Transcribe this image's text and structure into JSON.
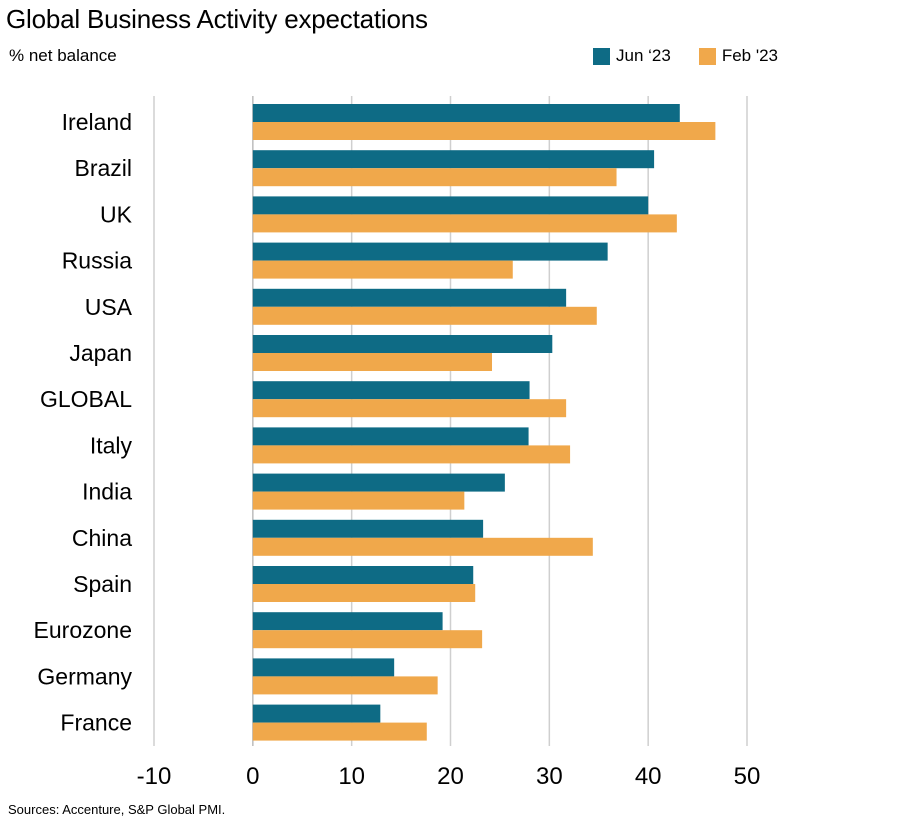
{
  "title": "Global Business Activity expectations",
  "subtitle": "% net balance",
  "source": "Sources: Accenture, S&P Global PMI.",
  "colors": {
    "jun": "#0e6b85",
    "feb": "#f0a84b",
    "grid": "#cfcfcf"
  },
  "chart_data": {
    "type": "bar",
    "orientation": "horizontal",
    "title": "Global Business Activity expectations",
    "subtitle": "% net balance",
    "categories": [
      "Ireland",
      "Brazil",
      "UK",
      "Russia",
      "USA",
      "Japan",
      "GLOBAL",
      "Italy",
      "India",
      "China",
      "Spain",
      "Eurozone",
      "Germany",
      "France"
    ],
    "series": [
      {
        "name": "Jun ‘23",
        "values": [
          43.2,
          40.6,
          40.0,
          35.9,
          31.7,
          30.3,
          28.0,
          27.9,
          25.5,
          23.3,
          22.3,
          19.2,
          14.3,
          12.9
        ]
      },
      {
        "name": "Feb '23",
        "values": [
          46.8,
          36.8,
          42.9,
          26.3,
          34.8,
          24.2,
          31.7,
          32.1,
          21.4,
          34.4,
          22.5,
          23.2,
          18.7,
          17.6
        ]
      }
    ],
    "xlim": [
      -10,
      50
    ],
    "xticks": [
      -10,
      0,
      10,
      20,
      30,
      40,
      50
    ],
    "grid": "vertical",
    "legend": "top-right"
  }
}
